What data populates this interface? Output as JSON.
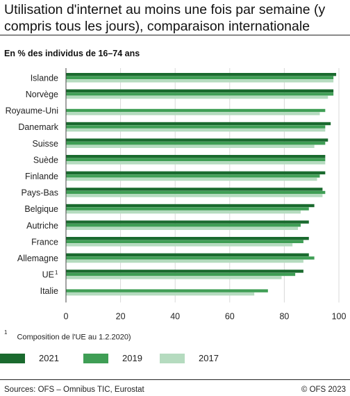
{
  "header": {
    "title": "Utilisation d'internet au moins une fois par semaine (y compris tous les jours), comparaison internationale",
    "subtitle": "En % des individus de 16–74 ans"
  },
  "footnote": {
    "marker": "1",
    "text": "Composition de l'UE au 1.2.2020)"
  },
  "footer": {
    "source": "Sources: OFS – Omnibus TIC, Eurostat",
    "copyright": "© OFS 2023"
  },
  "colors": {
    "y2021": "#1a6a2e",
    "y2019": "#3f9e55",
    "y2017": "#b5dbbf",
    "grid": "#d9d9d9",
    "axis": "#444444"
  },
  "chart_data": {
    "type": "bar",
    "orientation": "horizontal",
    "title": "Utilisation d'internet au moins une fois par semaine (y compris tous les jours), comparaison internationale",
    "subtitle": "En % des individus de 16–74 ans",
    "categories": [
      "Islande",
      "Norvège",
      "Royaume-Uni",
      "Danemark",
      "Suisse",
      "Suède",
      "Finlande",
      "Pays-Bas",
      "Belgique",
      "Autriche",
      "France",
      "Allemagne",
      "UE",
      "Italie"
    ],
    "category_superscripts": {
      "UE": "1"
    },
    "series": [
      {
        "name": "2021",
        "color": "#1a6a2e",
        "values": [
          99,
          98,
          null,
          97,
          96,
          95,
          95,
          94,
          91,
          89,
          89,
          89,
          87,
          null
        ]
      },
      {
        "name": "2019",
        "color": "#3f9e55",
        "values": [
          98,
          98,
          95,
          95,
          95,
          95,
          93,
          95,
          89,
          86,
          87,
          91,
          84,
          74
        ]
      },
      {
        "name": "2017",
        "color": "#b5dbbf",
        "values": [
          98,
          96,
          93,
          95,
          91,
          95,
          92,
          94,
          86,
          85,
          83,
          87,
          79,
          69
        ]
      }
    ],
    "xlim": [
      0,
      100
    ],
    "xticks": [
      0,
      20,
      40,
      60,
      80,
      100
    ],
    "grid": true,
    "legend": "bottom"
  }
}
